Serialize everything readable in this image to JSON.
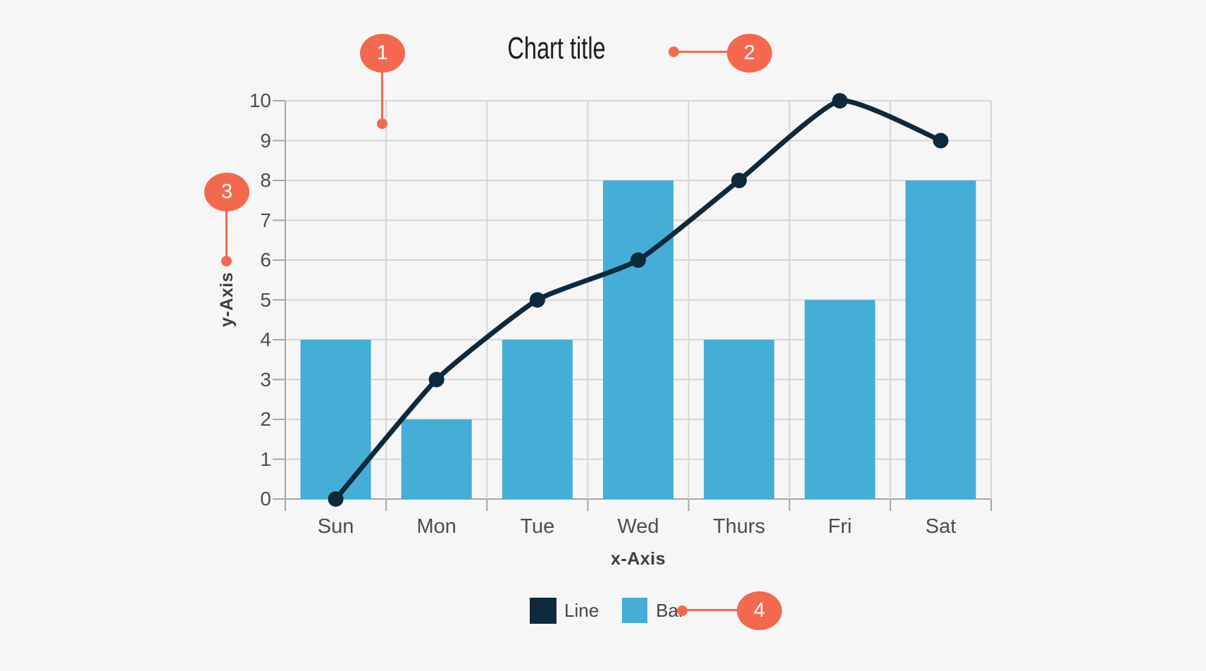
{
  "title": "Chart title",
  "colors": {
    "accent": "#f4694e",
    "bar": "#44aed6",
    "line": "#0d2a3d",
    "background": "#f6f6f6",
    "gridline": "#d6d6d6",
    "axis_line": "#a6a6a6",
    "tick_label": "#4d4d4d"
  },
  "annotations": [
    {
      "number": "1",
      "points_to": "plot-area-gridlines"
    },
    {
      "number": "2",
      "points_to": "chart-title"
    },
    {
      "number": "3",
      "points_to": "y-axis-label"
    },
    {
      "number": "4",
      "points_to": "bar-legend-item"
    }
  ],
  "chart_data": {
    "type": "bar+line",
    "title": "Chart title",
    "categories": [
      "Sun",
      "Mon",
      "Tue",
      "Wed",
      "Thurs",
      "Fri",
      "Sat"
    ],
    "series": [
      {
        "name": "Line",
        "type": "line",
        "color": "#0d2a3d",
        "values": [
          0,
          3,
          5,
          6,
          8,
          10,
          9
        ]
      },
      {
        "name": "Bar",
        "type": "bar",
        "color": "#44aed6",
        "values": [
          4,
          2,
          4,
          8,
          4,
          5,
          8
        ]
      }
    ],
    "xlabel": "x-Axis",
    "ylabel": "y-Axis",
    "ylim": [
      0,
      10
    ],
    "y_ticks": [
      0,
      1,
      2,
      3,
      4,
      5,
      6,
      7,
      8,
      9,
      10
    ],
    "grid": true,
    "legend_position": "bottom"
  }
}
